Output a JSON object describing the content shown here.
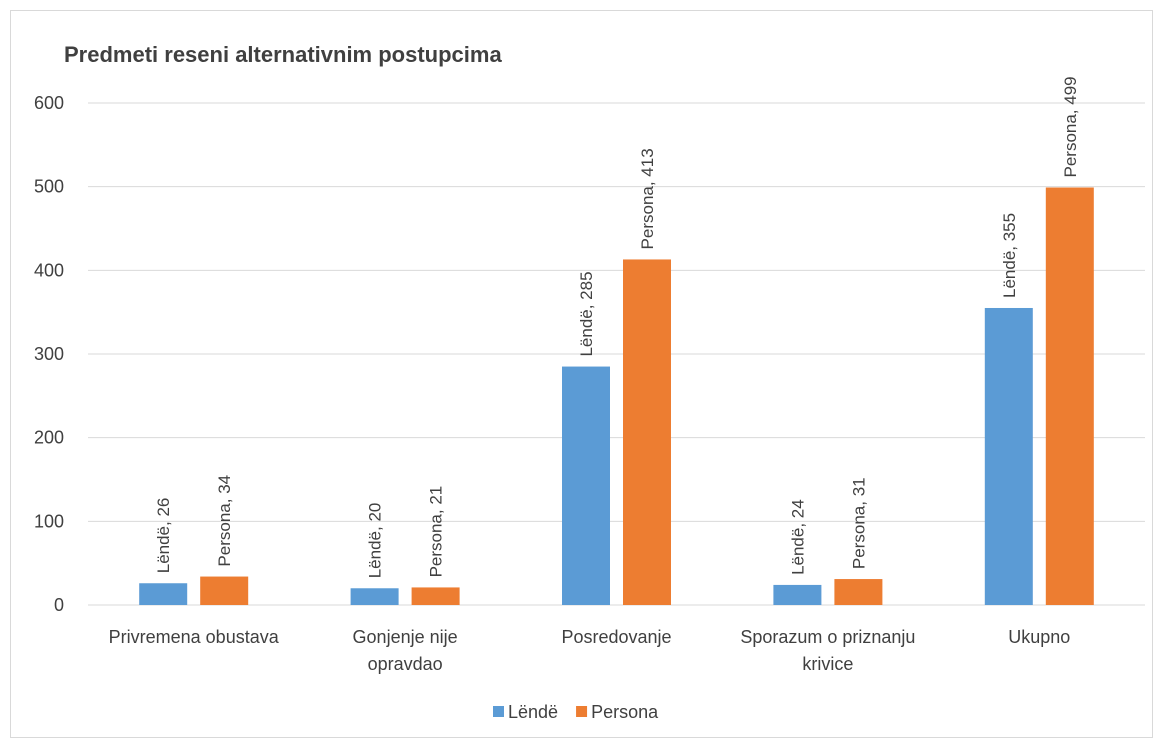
{
  "chart_data": {
    "type": "bar",
    "title": "Predmeti reseni alternativnim postupcima",
    "categories": [
      [
        "Privremena obustava"
      ],
      [
        "Gonjenje nije",
        "opravdao"
      ],
      [
        "Posredovanje"
      ],
      [
        "Sporazum o priznanju",
        "krivice"
      ],
      [
        "Ukupno"
      ]
    ],
    "series": [
      {
        "name": "Lëndë",
        "color": "#5b9bd5",
        "values": [
          26,
          20,
          285,
          24,
          355
        ]
      },
      {
        "name": "Persona",
        "color": "#ed7d31",
        "values": [
          34,
          21,
          413,
          31,
          499
        ]
      }
    ],
    "ylim": [
      0,
      600
    ],
    "yticks": [
      0,
      100,
      200,
      300,
      400,
      500,
      600
    ],
    "grid": true,
    "legend": "bottom",
    "data_label_separator": ", "
  }
}
